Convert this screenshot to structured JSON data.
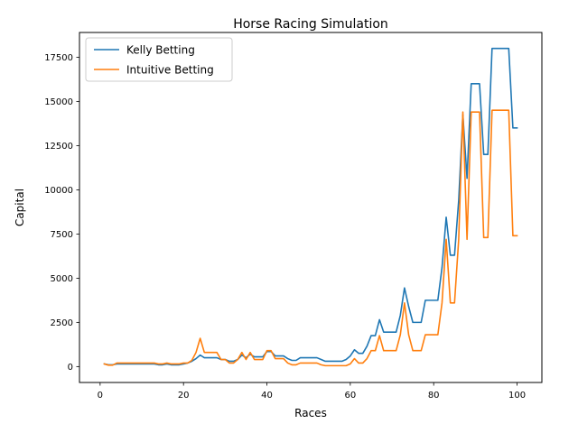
{
  "chart_data": {
    "type": "line",
    "title": "Horse Racing Simulation",
    "xlabel": "Races",
    "ylabel": "Capital",
    "xlim": [
      -4.95,
      105.95
    ],
    "ylim": [
      -900,
      18900
    ],
    "xticks": [
      0,
      20,
      40,
      60,
      80,
      100
    ],
    "yticks": [
      0,
      2500,
      5000,
      7500,
      10000,
      12500,
      15000,
      17500
    ],
    "ytick_labels": [
      "0",
      "2500",
      "5000",
      "7500",
      "10000",
      "12500",
      "15000",
      "17500"
    ],
    "grid": false,
    "legend": "top-left",
    "x": [
      1,
      2,
      3,
      4,
      5,
      6,
      7,
      8,
      9,
      10,
      11,
      12,
      13,
      14,
      15,
      16,
      17,
      18,
      19,
      20,
      21,
      22,
      23,
      24,
      25,
      26,
      27,
      28,
      29,
      30,
      31,
      32,
      33,
      34,
      35,
      36,
      37,
      38,
      39,
      40,
      41,
      42,
      43,
      44,
      45,
      46,
      47,
      48,
      49,
      50,
      51,
      52,
      53,
      54,
      55,
      56,
      57,
      58,
      59,
      60,
      61,
      62,
      63,
      64,
      65,
      66,
      67,
      68,
      69,
      70,
      71,
      72,
      73,
      74,
      75,
      76,
      77,
      78,
      79,
      80,
      81,
      82,
      83,
      84,
      85,
      86,
      87,
      88,
      89,
      90,
      91,
      92,
      93,
      94,
      95,
      96,
      97,
      98,
      99,
      100
    ],
    "series": [
      {
        "name": "Kelly Betting",
        "color": "#1f77b4",
        "values": [
          150,
          100,
          100,
          150,
          150,
          150,
          150,
          150,
          150,
          150,
          150,
          150,
          150,
          100,
          100,
          150,
          100,
          100,
          100,
          150,
          200,
          300,
          450,
          650,
          500,
          500,
          500,
          500,
          400,
          400,
          300,
          300,
          400,
          650,
          500,
          700,
          550,
          550,
          550,
          850,
          850,
          600,
          600,
          600,
          450,
          350,
          350,
          500,
          500,
          500,
          500,
          500,
          400,
          300,
          300,
          300,
          300,
          300,
          400,
          600,
          950,
          750,
          750,
          1150,
          1750,
          1750,
          2650,
          1950,
          1950,
          1950,
          1950,
          2900,
          4450,
          3400,
          2500,
          2500,
          2500,
          3750,
          3750,
          3750,
          3750,
          5600,
          8450,
          6300,
          6300,
          9400,
          14250,
          10650,
          16000,
          16000,
          16000,
          12000,
          12000,
          18000,
          18000,
          18000,
          18000,
          18000,
          13500,
          13500
        ]
      },
      {
        "name": "Intuitive Betting",
        "color": "#ff7f0e",
        "values": [
          150,
          80,
          80,
          200,
          200,
          200,
          200,
          200,
          200,
          200,
          200,
          200,
          200,
          150,
          150,
          200,
          150,
          150,
          150,
          200,
          200,
          350,
          800,
          1600,
          800,
          800,
          800,
          800,
          400,
          400,
          200,
          200,
          400,
          800,
          400,
          800,
          400,
          400,
          400,
          900,
          900,
          450,
          450,
          450,
          200,
          100,
          100,
          200,
          200,
          200,
          200,
          200,
          100,
          50,
          50,
          50,
          50,
          50,
          50,
          150,
          450,
          200,
          200,
          450,
          900,
          900,
          1750,
          900,
          900,
          900,
          900,
          1800,
          3600,
          1800,
          900,
          900,
          900,
          1800,
          1800,
          1800,
          1800,
          3600,
          7200,
          3600,
          3600,
          7200,
          14400,
          7200,
          14400,
          14400,
          14400,
          7300,
          7300,
          14500,
          14500,
          14500,
          14500,
          14500,
          7400,
          7400
        ]
      }
    ]
  }
}
